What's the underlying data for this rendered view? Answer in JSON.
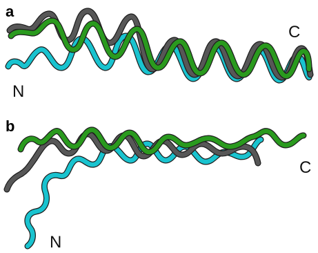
{
  "panels": [
    {
      "letter": "a",
      "n_label": "N",
      "c_label": "C"
    },
    {
      "letter": "b",
      "n_label": "N",
      "c_label": "C"
    }
  ],
  "colors": {
    "cyan": "#19c3cf",
    "green": "#2a9a1e",
    "gray": "#575757",
    "edge": "#1e1e1e"
  }
}
